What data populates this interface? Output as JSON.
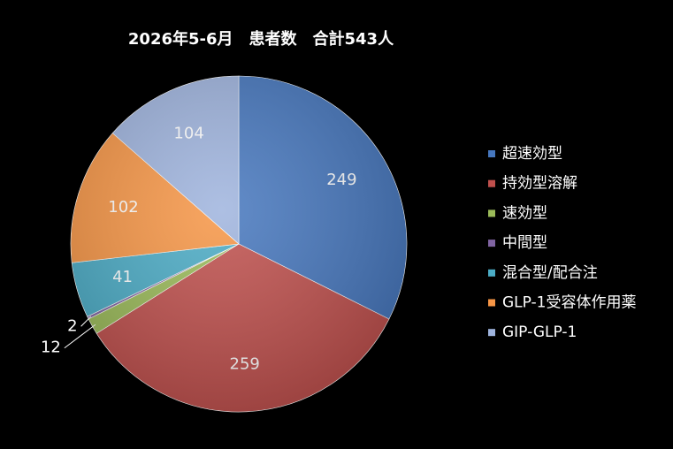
{
  "chart_data": {
    "type": "pie",
    "title": "2026年5-6月　患者数　合計543人",
    "categories": [
      "超速効型",
      "持効型溶解",
      "速効型",
      "中間型",
      "混合型/配合注",
      "GLP-1受容体作用薬",
      "GIP-GLP-1"
    ],
    "values": [
      249,
      259,
      12,
      2,
      41,
      102,
      104
    ],
    "colors": [
      "#4677be",
      "#c0504d",
      "#9bbb59",
      "#8064a2",
      "#4bacc6",
      "#f79646",
      "#9fb4de"
    ],
    "legend": "right"
  }
}
